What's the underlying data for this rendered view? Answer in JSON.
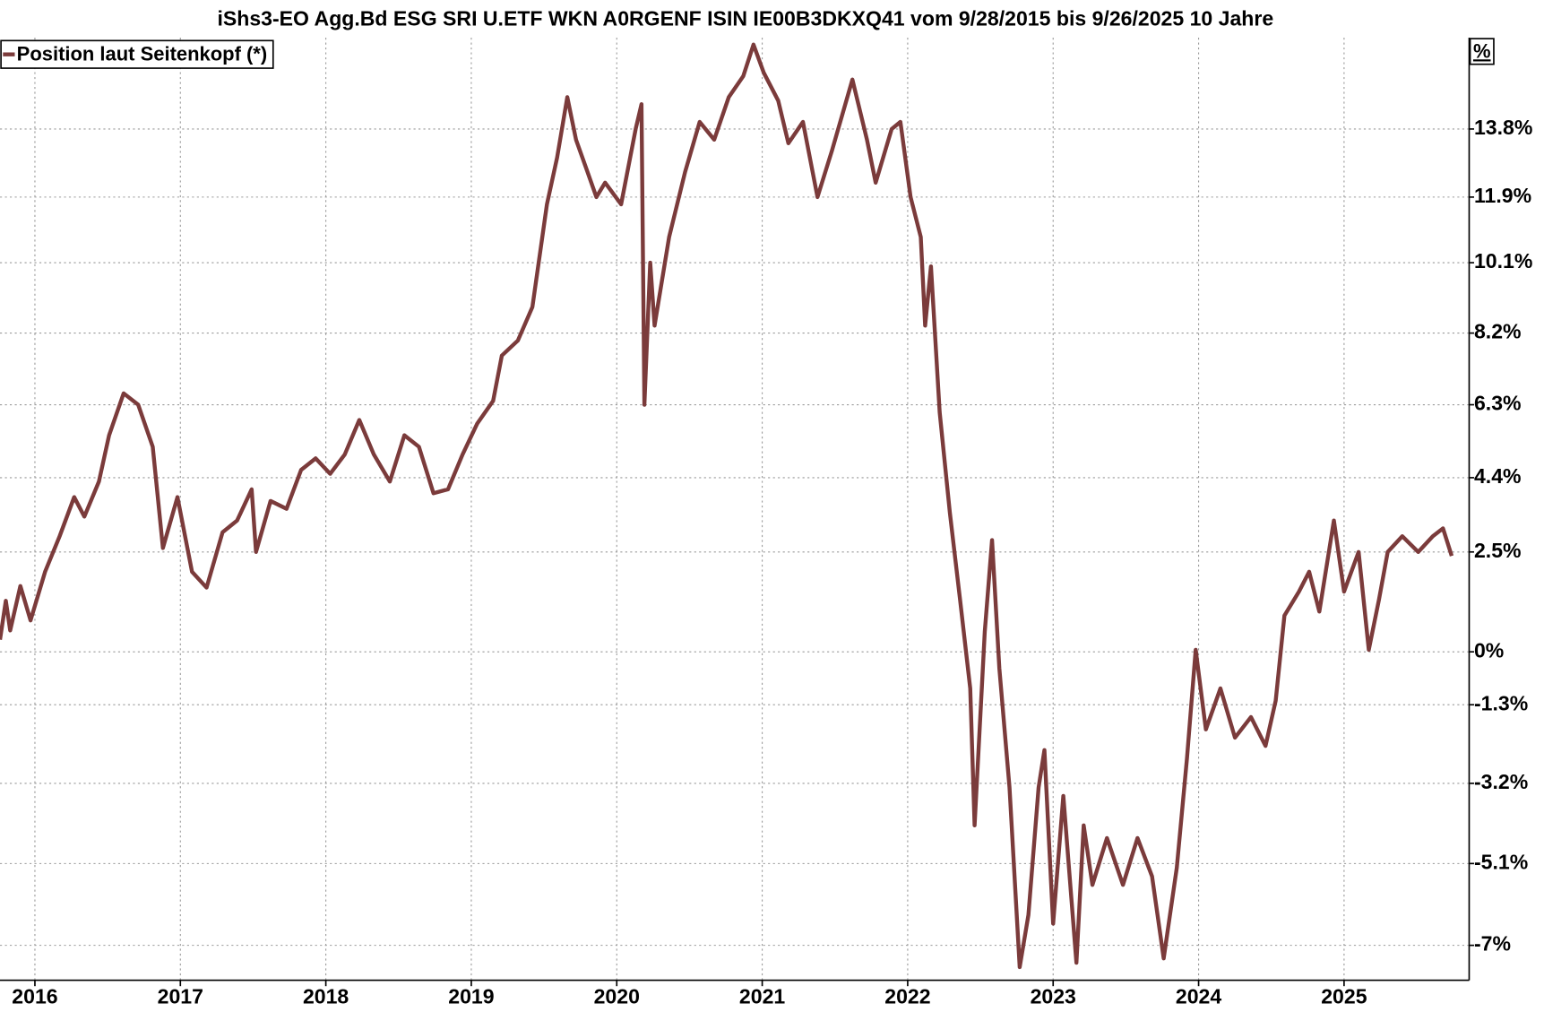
{
  "chart_data": {
    "type": "line",
    "title": "iShs3-EO Agg.Bd ESG SRI U.ETF WKN A0RGENF ISIN IE00B3DKXQ41 vom 9/28/2015 bis 9/26/2025 10 Jahre",
    "y_axis_label": "%",
    "log_scale": true,
    "grid": true,
    "legend": "top-left",
    "x": [
      2015.76,
      2015.8,
      2015.83,
      2015.9,
      2015.97,
      2016.07,
      2016.17,
      2016.27,
      2016.34,
      2016.44,
      2016.51,
      2016.61,
      2016.71,
      2016.81,
      2016.88,
      2016.98,
      2017.08,
      2017.18,
      2017.29,
      2017.39,
      2017.49,
      2017.52,
      2017.62,
      2017.73,
      2017.83,
      2017.93,
      2018.03,
      2018.13,
      2018.23,
      2018.33,
      2018.44,
      2018.54,
      2018.64,
      2018.74,
      2018.84,
      2018.94,
      2019.04,
      2019.15,
      2019.21,
      2019.32,
      2019.42,
      2019.52,
      2019.59,
      2019.66,
      2019.72,
      2019.79,
      2019.86,
      2019.92,
      2020.03,
      2020.13,
      2020.17,
      2020.19,
      2020.23,
      2020.26,
      2020.36,
      2020.47,
      2020.57,
      2020.67,
      2020.77,
      2020.87,
      2020.94,
      2021.01,
      2021.11,
      2021.18,
      2021.28,
      2021.38,
      2021.48,
      2021.62,
      2021.72,
      2021.78,
      2021.89,
      2021.95,
      2022.02,
      2022.09,
      2022.12,
      2022.16,
      2022.22,
      2022.29,
      2022.36,
      2022.43,
      2022.46,
      2022.53,
      2022.58,
      2022.63,
      2022.7,
      2022.77,
      2022.83,
      2022.9,
      2022.94,
      2023.0,
      2023.07,
      2023.16,
      2023.21,
      2023.27,
      2023.37,
      2023.48,
      2023.58,
      2023.68,
      2023.76,
      2023.85,
      2023.92,
      2023.98,
      2024.05,
      2024.15,
      2024.25,
      2024.36,
      2024.46,
      2024.53,
      2024.59,
      2024.69,
      2024.76,
      2024.83,
      2024.93,
      2025.0,
      2025.1,
      2025.17,
      2025.24,
      2025.3,
      2025.4,
      2025.51,
      2025.61,
      2025.68,
      2025.74
    ],
    "series": [
      {
        "name": "Position laut Seitenkopf (*)",
        "color": "#7b3b3b",
        "values": [
          0.3,
          1.27,
          0.53,
          1.64,
          0.78,
          2.0,
          2.9,
          3.9,
          3.4,
          4.3,
          5.5,
          6.6,
          6.3,
          5.2,
          2.6,
          3.9,
          2.0,
          1.6,
          3.0,
          3.3,
          4.1,
          2.5,
          3.8,
          3.6,
          4.6,
          4.9,
          4.5,
          5.0,
          5.9,
          5.0,
          4.3,
          5.5,
          5.2,
          4.0,
          4.1,
          5.0,
          5.8,
          6.4,
          7.6,
          8.0,
          8.9,
          11.7,
          13.0,
          14.7,
          13.5,
          12.7,
          11.9,
          12.3,
          11.7,
          13.8,
          14.5,
          6.3,
          10.1,
          8.4,
          10.8,
          12.6,
          14.0,
          13.5,
          14.7,
          15.3,
          16.2,
          15.4,
          14.6,
          13.4,
          14.0,
          11.9,
          13.2,
          15.2,
          13.5,
          12.3,
          13.8,
          14.0,
          11.9,
          10.8,
          8.4,
          10.0,
          6.1,
          3.5,
          1.3,
          -0.9,
          -4.2,
          0.5,
          2.8,
          -0.4,
          -3.3,
          -7.5,
          -6.3,
          -3.3,
          -2.4,
          -6.5,
          -3.5,
          -7.4,
          -4.2,
          -5.6,
          -4.5,
          -5.6,
          -4.5,
          -5.4,
          -7.3,
          -5.2,
          -2.6,
          0.05,
          -1.9,
          -0.9,
          -2.1,
          -1.6,
          -2.3,
          -1.2,
          0.9,
          1.5,
          2.0,
          1.0,
          3.3,
          1.5,
          2.5,
          0.05,
          1.3,
          2.5,
          2.9,
          2.5,
          2.9,
          3.1,
          2.4
        ]
      }
    ],
    "xlim": [
      2015.76,
      2025.86
    ],
    "xticks": [
      2016,
      2017,
      2018,
      2019,
      2020,
      2021,
      2022,
      2023,
      2024,
      2025
    ],
    "ylim": [
      -7.8,
      16.4
    ],
    "yticks": [
      {
        "value": -7,
        "label": "-7%"
      },
      {
        "value": -5.1,
        "label": "-5.1%"
      },
      {
        "value": -3.2,
        "label": "-3.2%"
      },
      {
        "value": -1.3,
        "label": "-1.3%"
      },
      {
        "value": 0,
        "label": "0%"
      },
      {
        "value": 2.5,
        "label": "2.5%"
      },
      {
        "value": 4.4,
        "label": "4.4%"
      },
      {
        "value": 6.3,
        "label": "6.3%"
      },
      {
        "value": 8.2,
        "label": "8.2%"
      },
      {
        "value": 10.1,
        "label": "10.1%"
      },
      {
        "value": 11.9,
        "label": "11.9%"
      },
      {
        "value": 13.8,
        "label": "13.8%"
      }
    ]
  }
}
